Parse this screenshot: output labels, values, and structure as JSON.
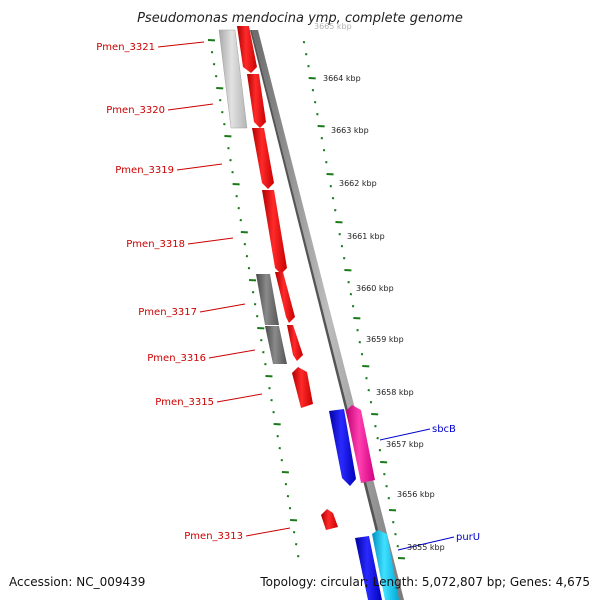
{
  "title": "Pseudomonas mendocina ymp, complete genome",
  "footer": {
    "accession": "Accession: NC_009439",
    "summary": "Topology: circular; Length: 5,072,807 bp; Genes: 4,675"
  },
  "colors": {
    "label_left": "#cc0000",
    "label_right": "#0000cc",
    "tick_green": "#1a7a1a",
    "cds_red": "#ee0000",
    "cds_gray": "#6e6e6e",
    "cds_lightgray": "#c8c8c8",
    "cds_blue": "#0000ee",
    "cds_pink": "#ff1a9a",
    "cds_cyan": "#00c8f0",
    "backbone": "#8c8c8c"
  },
  "left_labels": [
    "Pmen_3321",
    "Pmen_3320",
    "Pmen_3319",
    "Pmen_3318",
    "Pmen_3317",
    "Pmen_3316",
    "Pmen_3315",
    "Pmen_3313"
  ],
  "right_labels": [
    "sbcB",
    "purU"
  ],
  "kbp_labels": [
    "3664 kbp",
    "3663 kbp",
    "3662 kbp",
    "3661 kbp",
    "3660 kbp",
    "3659 kbp",
    "3658 kbp",
    "3657 kbp",
    "3656 kbp",
    "3655 kbp"
  ],
  "kbp_partial": "3665 kbp"
}
